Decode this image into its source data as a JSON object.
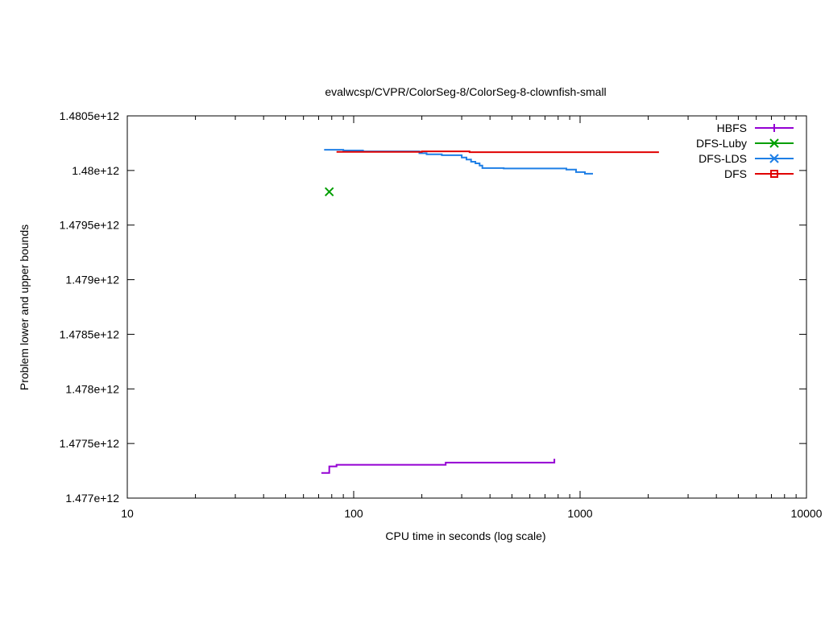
{
  "chart_data": {
    "type": "line",
    "title": "evalwcsp/CVPR/ColorSeg-8/ColorSeg-8-clownfish-small",
    "xlabel": "CPU time in seconds (log scale)",
    "ylabel": "Problem lower and upper bounds",
    "xscale": "log",
    "xlim": [
      10,
      10000
    ],
    "ylim": [
      1477000000000,
      1480500000000
    ],
    "x_ticks": [
      {
        "value": 10,
        "label": "10"
      },
      {
        "value": 100,
        "label": "100"
      },
      {
        "value": 1000,
        "label": "1000"
      },
      {
        "value": 10000,
        "label": "10000"
      }
    ],
    "y_ticks": [
      {
        "value": 1477000000000,
        "label": "1.477e+12"
      },
      {
        "value": 1477500000000,
        "label": "1.4775e+12"
      },
      {
        "value": 1478000000000,
        "label": "1.478e+12"
      },
      {
        "value": 1478500000000,
        "label": "1.4785e+12"
      },
      {
        "value": 1479000000000,
        "label": "1.479e+12"
      },
      {
        "value": 1479500000000,
        "label": "1.4795e+12"
      },
      {
        "value": 1480000000000,
        "label": "1.48e+12"
      },
      {
        "value": 1480500000000,
        "label": "1.4805e+12"
      }
    ],
    "grid": false,
    "legend_position": "top-right",
    "series": [
      {
        "name": "HBFS",
        "color": "#9400d3",
        "marker": "plus",
        "style": "steps",
        "points": [
          [
            72,
            1477230000000
          ],
          [
            78,
            1477230000000
          ],
          [
            78,
            1477290000000
          ],
          [
            84,
            1477290000000
          ],
          [
            84,
            1477305000000
          ],
          [
            255,
            1477305000000
          ],
          [
            255,
            1477325000000
          ],
          [
            770,
            1477325000000
          ],
          [
            770,
            1477360000000
          ]
        ]
      },
      {
        "name": "DFS-Luby",
        "color": "#009e00",
        "marker": "x",
        "style": "points",
        "points": [
          [
            78,
            1479805000000
          ]
        ]
      },
      {
        "name": "DFS-LDS",
        "color": "#1e7fe6",
        "marker": "asterisk",
        "style": "steps",
        "points": [
          [
            74,
            1480190000000
          ],
          [
            90,
            1480190000000
          ],
          [
            90,
            1480183000000
          ],
          [
            110,
            1480183000000
          ],
          [
            110,
            1480175000000
          ],
          [
            195,
            1480175000000
          ],
          [
            195,
            1480158000000
          ],
          [
            210,
            1480158000000
          ],
          [
            210,
            1480148000000
          ],
          [
            245,
            1480148000000
          ],
          [
            245,
            1480140000000
          ],
          [
            300,
            1480140000000
          ],
          [
            300,
            1480118000000
          ],
          [
            315,
            1480118000000
          ],
          [
            315,
            1480100000000
          ],
          [
            330,
            1480100000000
          ],
          [
            330,
            1480080000000
          ],
          [
            345,
            1480080000000
          ],
          [
            345,
            1480065000000
          ],
          [
            360,
            1480065000000
          ],
          [
            360,
            1480045000000
          ],
          [
            370,
            1480045000000
          ],
          [
            370,
            1480022000000
          ],
          [
            460,
            1480022000000
          ],
          [
            460,
            1480018000000
          ],
          [
            870,
            1480018000000
          ],
          [
            870,
            1480008000000
          ],
          [
            960,
            1480008000000
          ],
          [
            960,
            1479985000000
          ],
          [
            1050,
            1479985000000
          ],
          [
            1050,
            1479970000000
          ],
          [
            1140,
            1479970000000
          ]
        ]
      },
      {
        "name": "DFS",
        "color": "#e00000",
        "marker": "square",
        "style": "steps",
        "points": [
          [
            84,
            1480170000000
          ],
          [
            200,
            1480170000000
          ],
          [
            200,
            1480175000000
          ],
          [
            325,
            1480175000000
          ],
          [
            325,
            1480168000000
          ],
          [
            2230,
            1480168000000
          ]
        ]
      }
    ]
  }
}
